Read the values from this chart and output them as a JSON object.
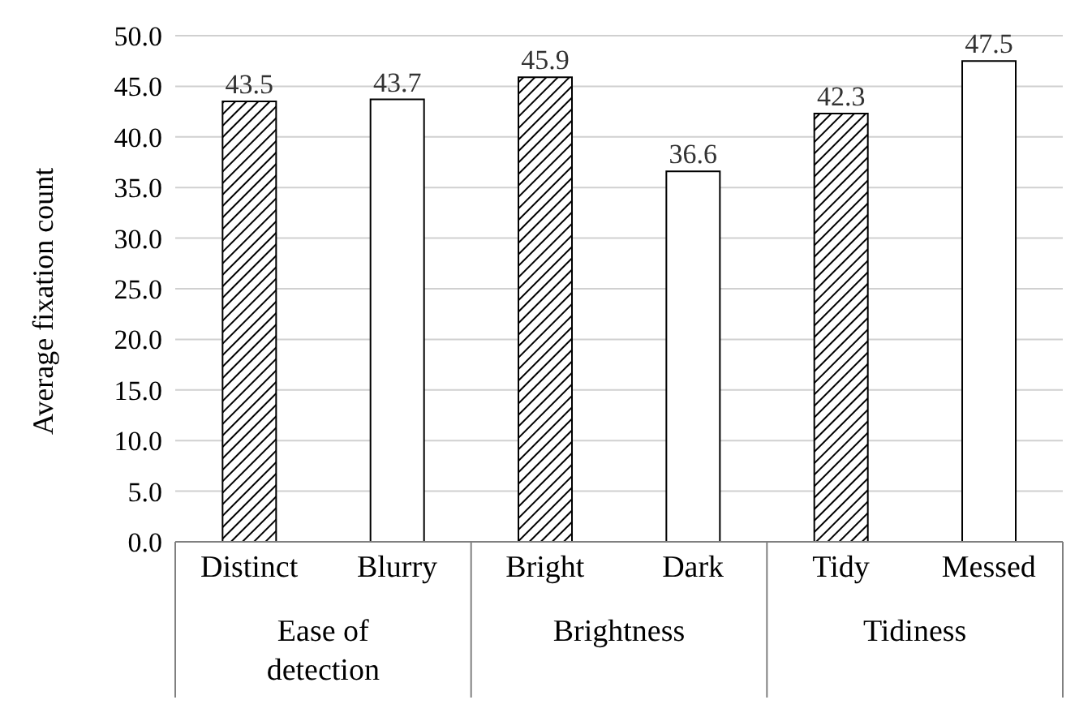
{
  "chart_data": {
    "type": "bar",
    "ylabel": "Average fixation count",
    "categories": [
      "Distinct",
      "Blurry",
      "Bright",
      "Dark",
      "Tidy",
      "Messed"
    ],
    "values": [
      43.5,
      43.7,
      45.9,
      36.6,
      42.3,
      47.5
    ],
    "colors": [
      "#000000",
      "#ffffff",
      "#000000",
      "#ffffff",
      "#000000",
      "#ffffff"
    ],
    "ylim": [
      0,
      50
    ],
    "yticks": [
      {
        "value": 0,
        "label": "0.0"
      },
      {
        "value": 5,
        "label": "5.0"
      },
      {
        "value": 10,
        "label": "10.0"
      },
      {
        "value": 15,
        "label": "15.0"
      },
      {
        "value": 20,
        "label": "20.0"
      },
      {
        "value": 25,
        "label": "25.0"
      },
      {
        "value": 30,
        "label": "30.0"
      },
      {
        "value": 35,
        "label": "35.0"
      },
      {
        "value": 40,
        "label": "40.0"
      },
      {
        "value": 45,
        "label": "45.0"
      },
      {
        "value": 50,
        "label": "50.0"
      }
    ],
    "grid": "y",
    "data_labels": true,
    "annotations": [
      "Ease of detection",
      "Brightness",
      "Tidiness"
    ]
  }
}
